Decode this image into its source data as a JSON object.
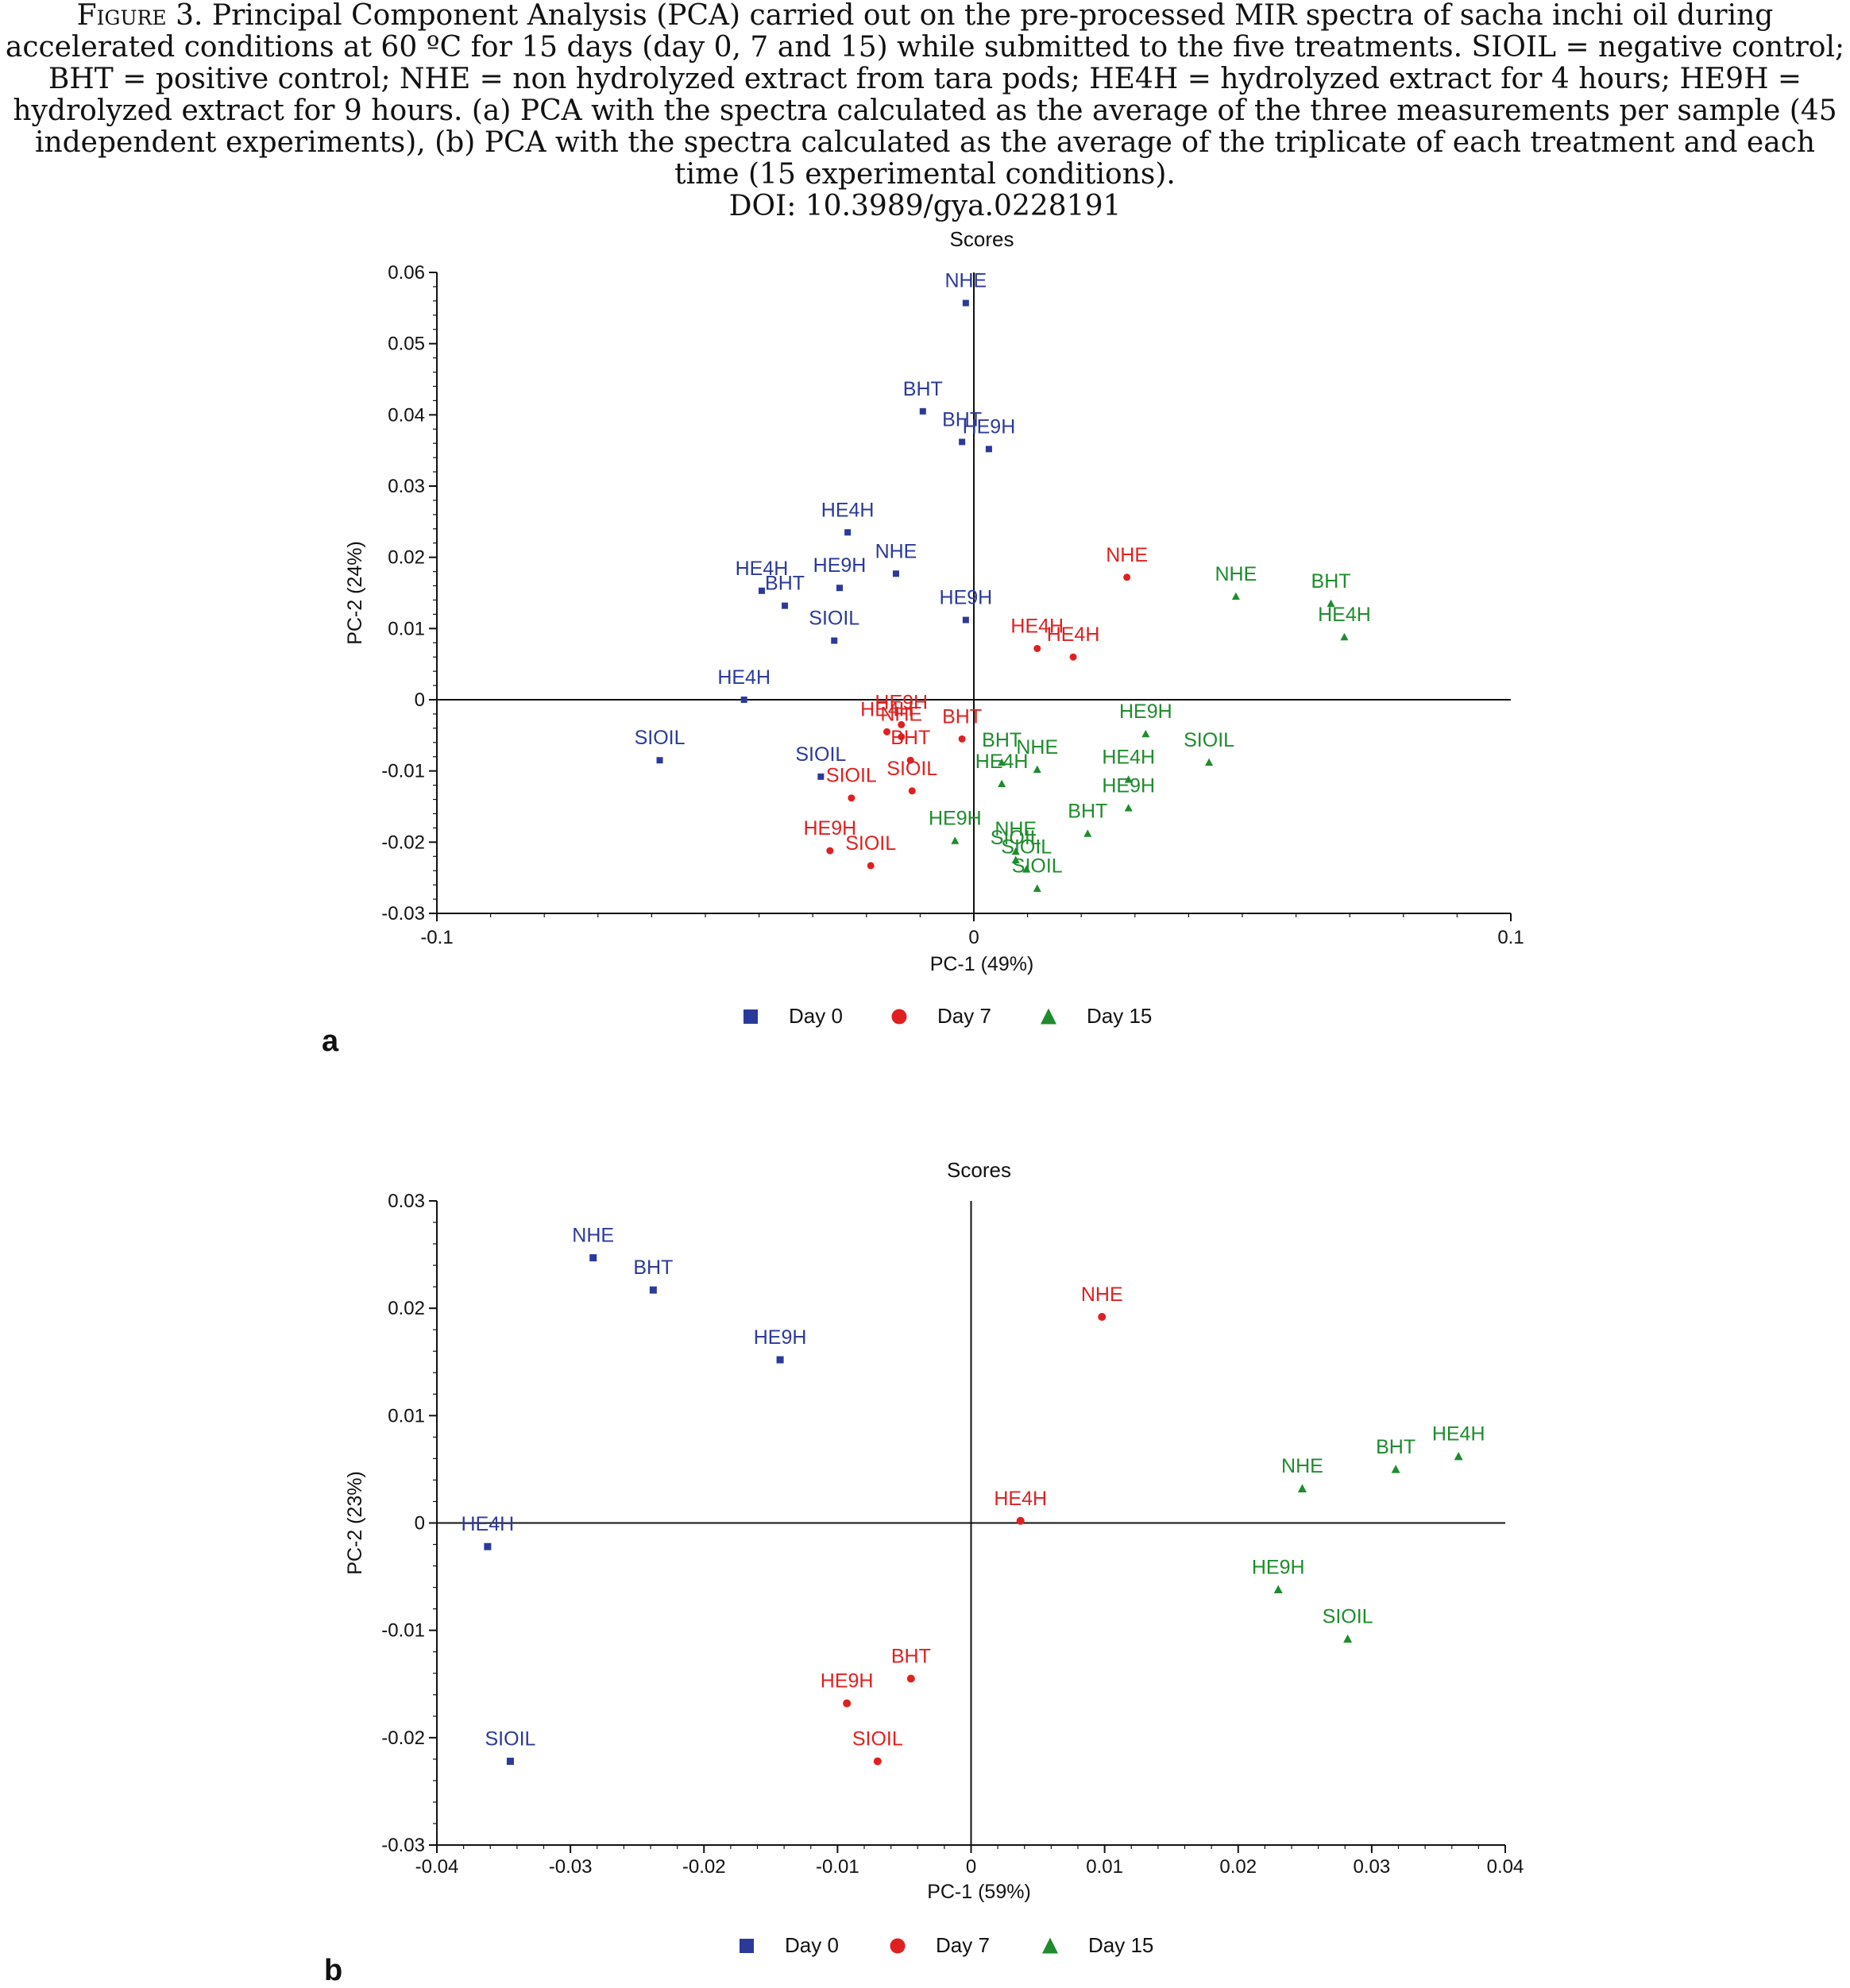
{
  "caption": {
    "lead": "Figure",
    "text": "3. Principal Component Analysis (PCA) carried out on the pre-processed MIR spectra of sacha inchi oil during accelerated conditions at 60 ºC for 15 days (day 0, 7 and 15) while submitted to the five treatments. SIOIL = negative control; BHT = positive control; NHE = non hydrolyzed extract from tara pods; HE4H = hydrolyzed extract for 4 hours; HE9H = hydrolyzed extract for 9 hours. (a) PCA with the spectra calculated as the average of the three measurements per sample (45 independent experiments), (b) PCA with the spectra calculated as the average of the triplicate of each treatment and each time (15 experimental conditions).",
    "doi": "DOI: 10.3989/gya.0228191"
  },
  "colors": {
    "day0": "#2b3a9a",
    "day7": "#e02020",
    "day15": "#1e8c2c"
  },
  "chart_data": [
    {
      "panel": "a",
      "type": "scatter",
      "title": "Scores",
      "xlabel": "PC-1 (49%)",
      "ylabel": "PC-2 (24%)",
      "xlim": [
        -0.1,
        0.1
      ],
      "ylim": [
        -0.03,
        0.06
      ],
      "xticks": [
        "-0.1",
        "0",
        "0.1"
      ],
      "xtick_values": [
        -0.1,
        0,
        0.1
      ],
      "yticks": [
        "0.06",
        "0.05",
        "0.04",
        "0.03",
        "0.02",
        "0.01",
        "0",
        "-0.01",
        "-0.02",
        "-0.03"
      ],
      "ytick_values": [
        0.06,
        0.05,
        0.04,
        0.03,
        0.02,
        0.01,
        0,
        -0.01,
        -0.02,
        -0.03
      ],
      "legend_placement": "bottom-center",
      "series": [
        {
          "name": "Day 0",
          "marker": "square",
          "color": "#2b3a9a",
          "points": [
            {
              "label": "NHE",
              "x": -0.0015,
              "y": 0.0557
            },
            {
              "label": "BHT",
              "x": -0.0095,
              "y": 0.0405
            },
            {
              "label": "BHT",
              "x": -0.0022,
              "y": 0.0362
            },
            {
              "label": "HE9H",
              "x": 0.0028,
              "y": 0.0352
            },
            {
              "label": "HE4H",
              "x": -0.0235,
              "y": 0.0235
            },
            {
              "label": "NHE",
              "x": -0.0145,
              "y": 0.0177
            },
            {
              "label": "HE9H",
              "x": -0.025,
              "y": 0.0157
            },
            {
              "label": "HE4H",
              "x": -0.0395,
              "y": 0.0153
            },
            {
              "label": "BHT",
              "x": -0.0352,
              "y": 0.0132
            },
            {
              "label": "HE9H",
              "x": -0.0015,
              "y": 0.0112
            },
            {
              "label": "SIOIL",
              "x": -0.026,
              "y": 0.0083
            },
            {
              "label": "HE4H",
              "x": -0.0428,
              "y": 0.0
            },
            {
              "label": "SIOIL",
              "x": -0.0585,
              "y": -0.0085
            },
            {
              "label": "SIOIL",
              "x": -0.0285,
              "y": -0.0108
            }
          ]
        },
        {
          "name": "Day 7",
          "marker": "circle",
          "color": "#e02020",
          "points": [
            {
              "label": "NHE",
              "x": 0.0285,
              "y": 0.0172
            },
            {
              "label": "HE4H",
              "x": 0.0118,
              "y": 0.0072
            },
            {
              "label": "HE4H",
              "x": 0.0185,
              "y": 0.006
            },
            {
              "label": "HE9H",
              "x": -0.0135,
              "y": -0.0035
            },
            {
              "label": "HE4H",
              "x": -0.0162,
              "y": -0.0045
            },
            {
              "label": "NHE",
              "x": -0.0135,
              "y": -0.0052
            },
            {
              "label": "BHT",
              "x": -0.0022,
              "y": -0.0055
            },
            {
              "label": "BHT",
              "x": -0.0118,
              "y": -0.0085
            },
            {
              "label": "SIOIL",
              "x": -0.0228,
              "y": -0.0138
            },
            {
              "label": "SIOIL",
              "x": -0.0115,
              "y": -0.0128
            },
            {
              "label": "HE9H",
              "x": -0.0268,
              "y": -0.0212
            },
            {
              "label": "SIOIL",
              "x": -0.0192,
              "y": -0.0233
            }
          ]
        },
        {
          "name": "Day 15",
          "marker": "triangle",
          "color": "#1e8c2c",
          "points": [
            {
              "label": "NHE",
              "x": 0.0488,
              "y": 0.0145
            },
            {
              "label": "BHT",
              "x": 0.0665,
              "y": 0.0135
            },
            {
              "label": "HE4H",
              "x": 0.069,
              "y": 0.0088
            },
            {
              "label": "HE9H",
              "x": 0.032,
              "y": -0.0048
            },
            {
              "label": "SIOIL",
              "x": 0.0438,
              "y": -0.0088
            },
            {
              "label": "NHE",
              "x": 0.0118,
              "y": -0.0098
            },
            {
              "label": "BHT",
              "x": 0.0052,
              "y": -0.0088
            },
            {
              "label": "HE4H",
              "x": 0.0052,
              "y": -0.0118
            },
            {
              "label": "HE4H",
              "x": 0.0288,
              "y": -0.0112
            },
            {
              "label": "HE9H",
              "x": 0.0288,
              "y": -0.0152
            },
            {
              "label": "BHT",
              "x": 0.0212,
              "y": -0.0188
            },
            {
              "label": "HE9H",
              "x": -0.0035,
              "y": -0.0198
            },
            {
              "label": "NHE",
              "x": 0.0078,
              "y": -0.0213
            },
            {
              "label": "SIOIL",
              "x": 0.0098,
              "y": -0.0238
            },
            {
              "label": "SIOIL",
              "x": 0.0078,
              "y": -0.0225
            },
            {
              "label": "SIOIL",
              "x": 0.0118,
              "y": -0.0265
            }
          ]
        }
      ]
    },
    {
      "panel": "b",
      "type": "scatter",
      "title": "Scores",
      "xlabel": "PC-1 (59%)",
      "ylabel": "PC-2 (23%)",
      "xlim": [
        -0.04,
        0.04
      ],
      "ylim": [
        -0.03,
        0.03
      ],
      "xticks": [
        "-0.04",
        "-0.03",
        "-0.02",
        "-0.01",
        "0",
        "0.01",
        "0.02",
        "0.03",
        "0.04"
      ],
      "xtick_values": [
        -0.04,
        -0.03,
        -0.02,
        -0.01,
        0,
        0.01,
        0.02,
        0.03,
        0.04
      ],
      "yticks": [
        "0.03",
        "0.02",
        "0.01",
        "0",
        "-0.01",
        "-0.02",
        "-0.03"
      ],
      "ytick_values": [
        0.03,
        0.02,
        0.01,
        0,
        -0.01,
        -0.02,
        -0.03
      ],
      "legend_placement": "bottom-center",
      "series": [
        {
          "name": "Day 0",
          "marker": "square",
          "color": "#2b3a9a",
          "points": [
            {
              "label": "NHE",
              "x": -0.0283,
              "y": 0.0247
            },
            {
              "label": "BHT",
              "x": -0.0238,
              "y": 0.0217
            },
            {
              "label": "HE9H",
              "x": -0.0143,
              "y": 0.0152
            },
            {
              "label": "HE4H",
              "x": -0.0362,
              "y": -0.0022
            },
            {
              "label": "SIOIL",
              "x": -0.0345,
              "y": -0.0222
            }
          ]
        },
        {
          "name": "Day 7",
          "marker": "circle",
          "color": "#e02020",
          "points": [
            {
              "label": "NHE",
              "x": 0.0098,
              "y": 0.0192
            },
            {
              "label": "HE4H",
              "x": 0.0037,
              "y": 0.0002
            },
            {
              "label": "BHT",
              "x": -0.0045,
              "y": -0.0145
            },
            {
              "label": "HE9H",
              "x": -0.0093,
              "y": -0.0168
            },
            {
              "label": "SIOIL",
              "x": -0.007,
              "y": -0.0222
            }
          ]
        },
        {
          "name": "Day 15",
          "marker": "triangle",
          "color": "#1e8c2c",
          "points": [
            {
              "label": "BHT",
              "x": 0.0318,
              "y": 0.005
            },
            {
              "label": "HE4H",
              "x": 0.0365,
              "y": 0.0062
            },
            {
              "label": "NHE",
              "x": 0.0248,
              "y": 0.0032
            },
            {
              "label": "HE9H",
              "x": 0.023,
              "y": -0.0062
            },
            {
              "label": "SIOIL",
              "x": 0.0282,
              "y": -0.0108
            }
          ]
        }
      ]
    }
  ]
}
